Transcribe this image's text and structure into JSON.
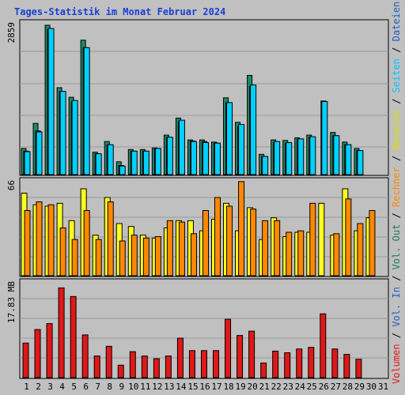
{
  "title": "Tages-Statistik im Monat Februar 2024",
  "colors": {
    "background": "#c0c0c0",
    "grid": "#9a9a9a",
    "title": "#1a3fd6",
    "anfragen": "#1a8a6a",
    "dateien": "#2060c0",
    "seiten": "#00d0ff",
    "besuche": "#ffff20",
    "rechner": "#ff8800",
    "volumen": "#e01818",
    "weekend": "#1f7a55"
  },
  "right_labels": [
    {
      "text": "Volumen",
      "color": "#e01818"
    },
    {
      "text": " / ",
      "color": "#000000"
    },
    {
      "text": "Vol. In",
      "color": "#2060c0"
    },
    {
      "text": " / ",
      "color": "#000000"
    },
    {
      "text": "Vol. Out",
      "color": "#1f7a55"
    },
    {
      "text": " / ",
      "color": "#000000"
    },
    {
      "text": "Rechner",
      "color": "#ff8800"
    },
    {
      "text": " / ",
      "color": "#000000"
    },
    {
      "text": "Besuche",
      "color": "#dddd00"
    },
    {
      "text": " / ",
      "color": "#000000"
    },
    {
      "text": "Seiten",
      "color": "#00c8ff"
    },
    {
      "text": " / ",
      "color": "#000000"
    },
    {
      "text": "Dateien",
      "color": "#2060c0"
    },
    {
      "text": " / ",
      "color": "#000000"
    },
    {
      "text": "Anfragen",
      "color": "#1a8a6a"
    }
  ],
  "chart_data": [
    {
      "type": "bar",
      "panel": "top",
      "y_max_label": "2859",
      "ylim": [
        0,
        2859
      ],
      "categories": [
        "1",
        "2",
        "3",
        "4",
        "5",
        "6",
        "7",
        "8",
        "9",
        "10",
        "11",
        "12",
        "13",
        "14",
        "15",
        "16",
        "17",
        "18",
        "19",
        "20",
        "21",
        "22",
        "23",
        "24",
        "25",
        "26",
        "27",
        "28",
        "29",
        "30",
        "31"
      ],
      "weekend_days": [
        "3",
        "4",
        "10",
        "11",
        "17",
        "18",
        "24",
        "25",
        "31"
      ],
      "series": [
        {
          "name": "Anfragen",
          "values": [
            490,
            960,
            2800,
            1630,
            1450,
            2520,
            420,
            620,
            240,
            470,
            470,
            500,
            740,
            1060,
            650,
            650,
            610,
            1440,
            980,
            1860,
            380,
            650,
            640,
            690,
            740,
            0,
            790,
            610,
            490,
            0,
            0
          ]
        },
        {
          "name": "Dateien",
          "values": [
            440,
            820,
            2720,
            1560,
            1360,
            2380,
            390,
            560,
            170,
            440,
            440,
            490,
            700,
            990,
            630,
            620,
            590,
            1350,
            900,
            1650,
            340,
            600,
            590,
            660,
            700,
            1380,
            730,
            560,
            450,
            0,
            0
          ]
        },
        {
          "name": "Seiten",
          "values": [
            430,
            800,
            2740,
            1560,
            1390,
            2380,
            390,
            560,
            160,
            440,
            440,
            490,
            700,
            1020,
            620,
            600,
            590,
            1350,
            940,
            1680,
            340,
            620,
            600,
            670,
            710,
            1370,
            730,
            560,
            450,
            0,
            0
          ]
        }
      ]
    },
    {
      "type": "bar",
      "panel": "middle",
      "y_max_label": "66",
      "ylim": [
        0,
        66
      ],
      "categories": [
        "1",
        "2",
        "3",
        "4",
        "5",
        "6",
        "7",
        "8",
        "9",
        "10",
        "11",
        "12",
        "13",
        "14",
        "15",
        "16",
        "17",
        "18",
        "19",
        "20",
        "21",
        "22",
        "23",
        "24",
        "25",
        "26",
        "27",
        "28",
        "29",
        "30",
        "31"
      ],
      "series": [
        {
          "name": "Besuche",
          "values": [
            57,
            49,
            48,
            50,
            38,
            60,
            28,
            54,
            36,
            34,
            28,
            26,
            33,
            38,
            38,
            31,
            39,
            50,
            31,
            47,
            25,
            40,
            27,
            30,
            30,
            50,
            28,
            60,
            31,
            40,
            0
          ]
        },
        {
          "name": "Rechner",
          "values": [
            45,
            51,
            49,
            33,
            25,
            45,
            25,
            51,
            24,
            28,
            26,
            27,
            38,
            37,
            29,
            45,
            54,
            48,
            65,
            46,
            38,
            38,
            30,
            31,
            50,
            0,
            29,
            53,
            36,
            45,
            0
          ]
        }
      ]
    },
    {
      "type": "bar",
      "panel": "bottom",
      "y_max_label": "17.83 MB",
      "ylim": [
        0,
        17.83
      ],
      "categories": [
        "1",
        "2",
        "3",
        "4",
        "5",
        "6",
        "7",
        "8",
        "9",
        "10",
        "11",
        "12",
        "13",
        "14",
        "15",
        "16",
        "17",
        "18",
        "19",
        "20",
        "21",
        "22",
        "23",
        "24",
        "25",
        "26",
        "27",
        "28",
        "29",
        "30",
        "31"
      ],
      "series": [
        {
          "name": "Volumen",
          "values": [
            6.4,
            8.9,
            10.0,
            16.6,
            15.0,
            7.9,
            4.0,
            5.8,
            2.3,
            4.8,
            4.0,
            3.5,
            4.0,
            7.3,
            5.0,
            5.0,
            5.0,
            10.8,
            7.8,
            8.6,
            2.7,
            4.9,
            4.6,
            5.3,
            5.6,
            11.8,
            5.3,
            4.3,
            3.4,
            0,
            0
          ]
        }
      ]
    }
  ]
}
